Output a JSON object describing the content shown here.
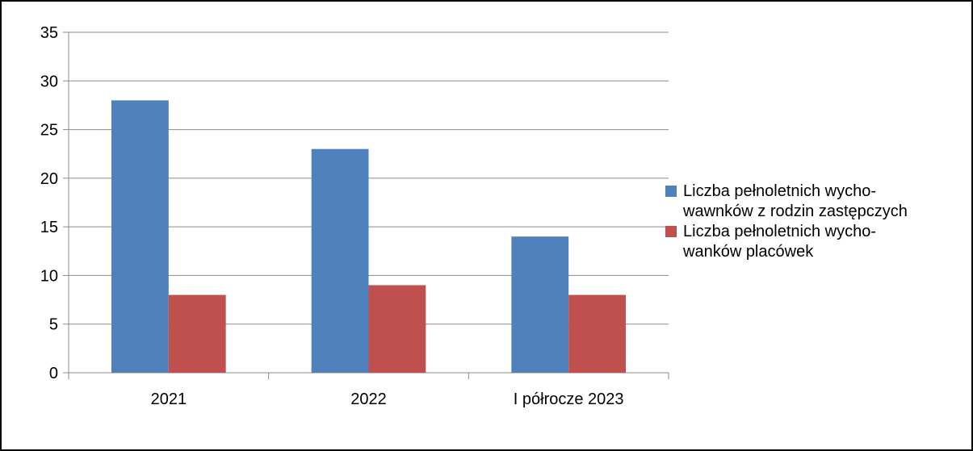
{
  "chart_data": {
    "type": "bar",
    "title": "",
    "xlabel": "",
    "ylabel": "",
    "categories": [
      "2021",
      "2022",
      "I półrocze 2023"
    ],
    "series": [
      {
        "name_lines": [
          "Liczba pełnoletnich wycho-",
          "wawnków z rodzin zastępczych"
        ],
        "color": "#4F81BD",
        "values": [
          28,
          23,
          14
        ]
      },
      {
        "name_lines": [
          "Liczba pełnoletnich wycho-",
          "wanków placówek"
        ],
        "color": "#C0504D",
        "values": [
          8,
          9,
          8
        ]
      }
    ],
    "ylim": [
      0,
      35
    ],
    "yticks": [
      0,
      5,
      10,
      15,
      20,
      25,
      30,
      35
    ],
    "grid": true,
    "legend_position": "right"
  }
}
